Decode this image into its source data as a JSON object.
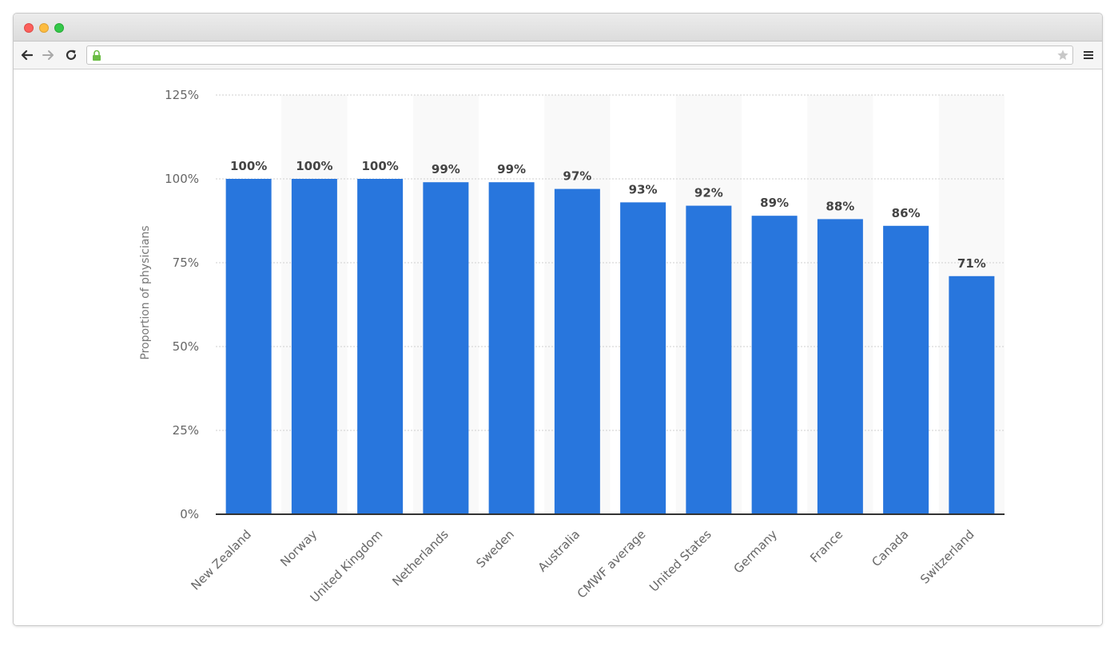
{
  "browser": {
    "icons": {
      "back": "arrow-left-icon",
      "forward": "arrow-right-icon",
      "reload": "reload-icon",
      "lock": "lock-icon",
      "bookmark": "star-icon",
      "menu": "hamburger-menu-icon"
    },
    "colors": {
      "close": "#fc605c",
      "minimize": "#fdbc40",
      "maximize": "#34c84a",
      "lock": "#6bbd45"
    }
  },
  "chart_data": {
    "type": "bar",
    "categories": [
      "New Zealand",
      "Norway",
      "United Kingdom",
      "Netherlands",
      "Sweden",
      "Australia",
      "CMWF average",
      "United States",
      "Germany",
      "France",
      "Canada",
      "Switzerland"
    ],
    "values": [
      100,
      100,
      100,
      99,
      99,
      97,
      93,
      92,
      89,
      88,
      86,
      71
    ],
    "value_labels": [
      "100%",
      "100%",
      "100%",
      "99%",
      "99%",
      "97%",
      "93%",
      "92%",
      "89%",
      "88%",
      "86%",
      "71%"
    ],
    "ylabel": "Proportion of physicians",
    "xlabel": "",
    "ylim": [
      0,
      125
    ],
    "yticks": [
      0,
      25,
      50,
      75,
      100,
      125
    ],
    "ytick_labels": [
      "0%",
      "25%",
      "50%",
      "75%",
      "100%",
      "125%"
    ],
    "grid": true,
    "bar_color": "#2876dd",
    "label_color": "#444444"
  }
}
